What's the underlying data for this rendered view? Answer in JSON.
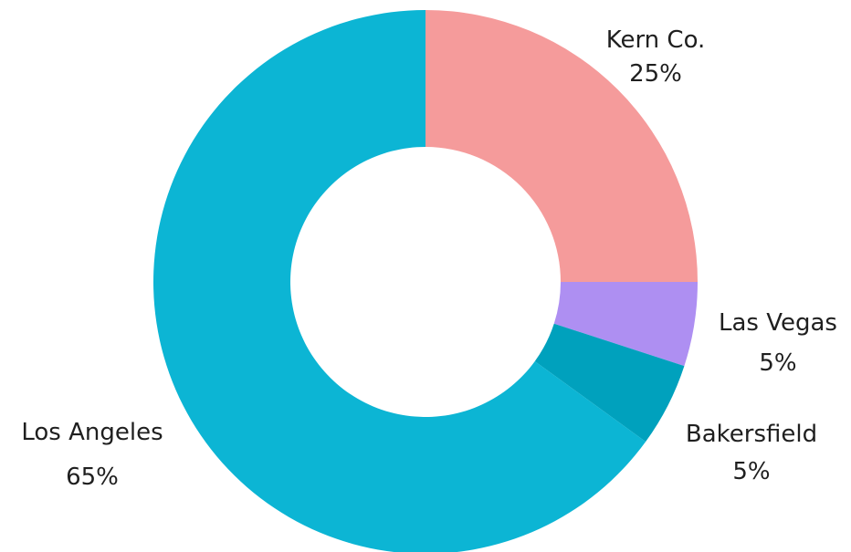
{
  "chart_data": {
    "type": "pie",
    "donut": true,
    "title": "",
    "categories": [
      "Kern Co.",
      "Las Vegas",
      "Bakersfield",
      "Los Angeles"
    ],
    "values": [
      25,
      5,
      5,
      65
    ],
    "value_labels": [
      "25%",
      "5%",
      "5%",
      "65%"
    ],
    "colors": [
      "#f59b9b",
      "#ae8ff2",
      "#00a1bd",
      "#0cb5d4"
    ],
    "legend": "none",
    "labels_position": "outside"
  }
}
